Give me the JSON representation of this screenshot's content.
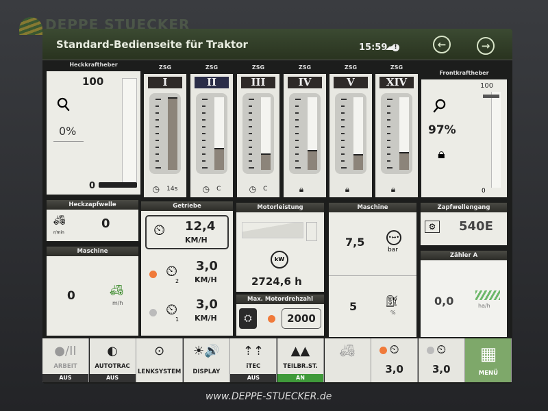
{
  "watermark": "www.DEPPE-STUECKER.de",
  "logo": "DEPPE STUECKER",
  "header": {
    "title": "Standard-Bedienseite für Traktor",
    "time": "15:59",
    "cloud_icon": "cloud-warning-icon",
    "back_icon": "arrow-left-icon",
    "forward_icon": "arrow-right-icon"
  },
  "rear_hitch": {
    "title": "Heckkraftheber",
    "max": "100",
    "min": "0",
    "value": "0%",
    "level_percent": 0
  },
  "front_hitch": {
    "title": "Frontkraftheber",
    "max": "100",
    "min": "0",
    "value": "97%",
    "level_percent": 97,
    "locked": true
  },
  "scv": [
    {
      "head": "ZSG",
      "label": "I",
      "level_percent": 100,
      "foot_icon": "timer-icon",
      "foot": "14s"
    },
    {
      "head": "ZSG",
      "label": "II",
      "level_percent": 30,
      "foot_icon": "timer-icon",
      "foot": "C"
    },
    {
      "head": "ZSG",
      "label": "III",
      "level_percent": 23,
      "foot_icon": "timer-icon",
      "foot": "C"
    },
    {
      "head": "ZSG",
      "label": "IV",
      "level_percent": 27,
      "foot_icon": "lock-cylinder-icon",
      "foot": ""
    },
    {
      "head": "ZSG",
      "label": "V",
      "level_percent": 22,
      "foot_icon": "lock-cylinder-icon",
      "foot": ""
    },
    {
      "head": "ZSG",
      "label": "XIV",
      "level_percent": 25,
      "foot_icon": "lock-cylinder-icon",
      "foot": ""
    }
  ],
  "rear_pto": {
    "title": "Heckzapfwelle",
    "value": "0",
    "unit": "r/min"
  },
  "machine_left": {
    "title": "Maschine",
    "value": "0",
    "unit": "m/h"
  },
  "transmission": {
    "title": "Getriebe",
    "speed": "12,4",
    "speed_unit": "KM/H",
    "set2": "3,0",
    "set2_unit": "KM/H",
    "set2_index": "2",
    "set1": "3,0",
    "set1_unit": "KM/H",
    "set1_index": "1"
  },
  "engine_power": {
    "title": "Motorleistung",
    "hours": "2724,6 h",
    "icon_text": "kW"
  },
  "max_rpm": {
    "title": "Max. Motordrehzahl",
    "value": "2000"
  },
  "machine_right": {
    "title": "Maschine",
    "pressure": "7,5",
    "pressure_unit": "bar",
    "fuel": "5",
    "fuel_unit": "%"
  },
  "pto_gear": {
    "title": "Zapfwellengang",
    "value": "540E"
  },
  "counter": {
    "title": "Zähler A",
    "value": "0,0",
    "unit": "ha/h"
  },
  "buttons": [
    {
      "label": "ARBEIT",
      "status": "AUS"
    },
    {
      "label": "AUTOTRAC",
      "status": "AUS"
    },
    {
      "label": "LENKSYSTEM",
      "status": ""
    },
    {
      "label": "DISPLAY",
      "status": ""
    },
    {
      "label": "iTEC",
      "status": "AUS"
    },
    {
      "label": "TEILBR.ST.",
      "status": "AN"
    },
    {
      "label": "",
      "status": ""
    },
    {
      "label": "3,0",
      "status": ""
    },
    {
      "label": "3,0",
      "status": ""
    },
    {
      "label": "MENÜ",
      "status": ""
    }
  ],
  "colors": {
    "header": "#2f3b26",
    "accent_green": "#3f9a3a",
    "led_orange": "#f07a3a",
    "menu_green": "#7ea86a"
  }
}
